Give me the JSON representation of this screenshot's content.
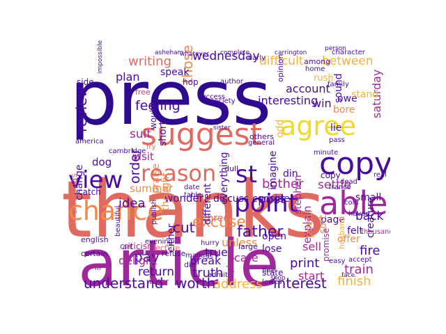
{
  "palette": {
    "dark_purple": "#2e0a8f",
    "indigo": "#4a0aa0",
    "magenta": "#a0289a",
    "pink": "#c8407f",
    "coral": "#e06a60",
    "orange": "#f0894c",
    "amber": "#f4b23a",
    "yellow": "#f2d82a"
  },
  "words": [
    {
      "text": "press",
      "color": "dark_purple"
    },
    {
      "text": "thanks",
      "color": "coral"
    },
    {
      "text": "article",
      "color": "magenta"
    },
    {
      "text": "suggest",
      "color": "coral"
    },
    {
      "text": "agree",
      "color": "yellow"
    },
    {
      "text": "copy",
      "color": "indigo"
    },
    {
      "text": "view",
      "color": "indigo"
    },
    {
      "text": "reason",
      "color": "coral"
    },
    {
      "text": "st",
      "color": "indigo"
    },
    {
      "text": "chance",
      "color": "orange"
    },
    {
      "text": "point",
      "color": "indigo"
    },
    {
      "text": "able",
      "color": "magenta"
    },
    {
      "text": "review",
      "color": "indigo"
    },
    {
      "text": "writing",
      "color": "coral"
    },
    {
      "text": "wednesday",
      "color": "indigo"
    },
    {
      "text": "difficult",
      "color": "amber"
    },
    {
      "text": "between",
      "color": "amber"
    },
    {
      "text": "saturday",
      "color": "magenta"
    },
    {
      "text": "feeling",
      "color": "indigo"
    },
    {
      "text": "suit",
      "color": "magenta"
    },
    {
      "text": "those",
      "color": "orange"
    },
    {
      "text": "excuse",
      "color": "orange"
    },
    {
      "text": "cut",
      "color": "indigo"
    },
    {
      "text": "father",
      "color": "indigo"
    },
    {
      "text": "understand",
      "color": "indigo"
    },
    {
      "text": "worth",
      "color": "indigo"
    },
    {
      "text": "address",
      "color": "amber"
    },
    {
      "text": "interest",
      "color": "indigo"
    },
    {
      "text": "finish",
      "color": "amber"
    },
    {
      "text": "train",
      "color": "magenta"
    },
    {
      "text": "settle",
      "color": "magenta"
    },
    {
      "text": "copy",
      "color": "indigo"
    },
    {
      "text": "pay",
      "color": "indigo"
    },
    {
      "text": "return",
      "color": "indigo"
    },
    {
      "text": "order",
      "color": "indigo"
    },
    {
      "text": "idea",
      "color": "indigo"
    },
    {
      "text": "post",
      "color": "indigo"
    },
    {
      "text": "bother",
      "color": "magenta"
    },
    {
      "text": "account",
      "color": "indigo"
    },
    {
      "text": "interesting",
      "color": "indigo"
    },
    {
      "text": "print",
      "color": "indigo"
    },
    {
      "text": "sell",
      "color": "magenta"
    },
    {
      "text": "fire",
      "color": "indigo"
    },
    {
      "text": "back",
      "color": "indigo"
    },
    {
      "text": "explain",
      "color": "magenta"
    },
    {
      "text": "truth",
      "color": "indigo"
    },
    {
      "text": "break",
      "color": "indigo"
    },
    {
      "text": "care",
      "color": "magenta"
    },
    {
      "text": "start",
      "color": "magenta"
    },
    {
      "text": "true",
      "color": "indigo"
    },
    {
      "text": "unless",
      "color": "orange"
    },
    {
      "text": "delight",
      "color": "magenta"
    },
    {
      "text": "plan",
      "color": "indigo"
    },
    {
      "text": "change",
      "color": "indigo"
    },
    {
      "text": "visit",
      "color": "magenta"
    },
    {
      "text": "dog",
      "color": "indigo"
    },
    {
      "text": "summer",
      "color": "orange"
    },
    {
      "text": "wonder",
      "color": "indigo"
    },
    {
      "text": "discuss",
      "color": "indigo"
    },
    {
      "text": "consider",
      "color": "indigo"
    },
    {
      "text": "three",
      "color": "coral"
    },
    {
      "text": "imagine",
      "color": "indigo"
    },
    {
      "text": "page",
      "color": "indigo"
    },
    {
      "text": "felt",
      "color": "indigo"
    },
    {
      "text": "small",
      "color": "indigo"
    },
    {
      "text": "win",
      "color": "indigo"
    },
    {
      "text": "sound",
      "color": "indigo"
    },
    {
      "text": "bore",
      "color": "orange"
    },
    {
      "text": "owe",
      "color": "indigo"
    },
    {
      "text": "stand",
      "color": "amber"
    },
    {
      "text": "speak",
      "color": "indigo"
    },
    {
      "text": "side",
      "color": "indigo"
    },
    {
      "text": "short",
      "color": "indigo"
    },
    {
      "text": "praise",
      "color": "orange"
    },
    {
      "text": "thought",
      "color": "orange"
    },
    {
      "text": "everything",
      "color": "indigo"
    },
    {
      "text": "different",
      "color": "indigo"
    },
    {
      "text": "poem",
      "color": "orange"
    },
    {
      "text": "sort",
      "color": "orange"
    },
    {
      "text": "creature",
      "color": "indigo"
    },
    {
      "text": "offer",
      "color": "orange"
    },
    {
      "text": "either",
      "color": "indigo"
    },
    {
      "text": "lose",
      "color": "indigo"
    },
    {
      "text": "open",
      "color": "indigo"
    },
    {
      "text": "odd",
      "color": "amber"
    },
    {
      "text": "lie",
      "color": "indigo"
    },
    {
      "text": "din",
      "color": "indigo"
    },
    {
      "text": "catch",
      "color": "indigo"
    },
    {
      "text": "christmas",
      "color": "coral"
    },
    {
      "text": "english",
      "color": "indigo"
    },
    {
      "text": "criticism",
      "color": "magenta"
    },
    {
      "text": "lecture",
      "color": "coral"
    },
    {
      "text": "writer",
      "color": "magenta"
    },
    {
      "text": "stephen",
      "color": "magenta"
    },
    {
      "text": "promise",
      "color": "magenta"
    },
    {
      "text": "husband",
      "color": "amber"
    },
    {
      "text": "state",
      "color": "indigo"
    },
    {
      "text": "play",
      "color": "magenta"
    },
    {
      "text": "large",
      "color": "indigo"
    },
    {
      "text": "rush",
      "color": "amber"
    },
    {
      "text": "wouldn",
      "color": "indigo"
    },
    {
      "text": "hop",
      "color": "indigo"
    },
    {
      "text": "free",
      "color": "pink"
    },
    {
      "text": "among",
      "color": "indigo"
    },
    {
      "text": "refuse",
      "color": "indigo"
    },
    {
      "text": "ill",
      "color": "magenta"
    },
    {
      "text": "fry",
      "color": "coral"
    },
    {
      "text": "manage",
      "color": "indigo"
    },
    {
      "text": "certain",
      "color": "indigo"
    },
    {
      "text": "die",
      "color": "indigo"
    },
    {
      "text": "dull",
      "color": "indigo"
    },
    {
      "text": "others",
      "color": "indigo"
    },
    {
      "text": "opinion",
      "color": "indigo"
    },
    {
      "text": "author",
      "color": "indigo"
    },
    {
      "text": "early",
      "color": "indigo"
    },
    {
      "text": "france",
      "color": "indigo"
    },
    {
      "text": "dead",
      "color": "indigo"
    },
    {
      "text": "admit",
      "color": "indigo"
    },
    {
      "text": "real",
      "color": "indigo"
    },
    {
      "text": "america",
      "color": "indigo"
    },
    {
      "text": "cambridge",
      "color": "indigo"
    },
    {
      "text": "hurry",
      "color": "indigo"
    },
    {
      "text": "accept",
      "color": "indigo"
    },
    {
      "text": "thousand",
      "color": "magenta"
    },
    {
      "text": "society",
      "color": "indigo"
    },
    {
      "text": "home",
      "color": "indigo"
    },
    {
      "text": "family",
      "color": "indigo"
    },
    {
      "text": "beautiful",
      "color": "indigo"
    },
    {
      "text": "publish",
      "color": "indigo"
    },
    {
      "text": "art",
      "color": "indigo"
    },
    {
      "text": "evening",
      "color": "indigo"
    },
    {
      "text": "table",
      "color": "indigo"
    },
    {
      "text": "date",
      "color": "indigo"
    },
    {
      "text": "fine",
      "color": "indigo"
    },
    {
      "text": "lewes",
      "color": "indigo"
    },
    {
      "text": "easy",
      "color": "indigo"
    },
    {
      "text": "haven",
      "color": "indigo"
    },
    {
      "text": "cold",
      "color": "indigo"
    },
    {
      "text": "pass",
      "color": "indigo"
    },
    {
      "text": "minute",
      "color": "indigo"
    },
    {
      "text": "general",
      "color": "indigo"
    },
    {
      "text": "success",
      "color": "indigo"
    },
    {
      "text": "character",
      "color": "indigo"
    },
    {
      "text": "impossible",
      "color": "indigo"
    },
    {
      "text": "asheham",
      "color": "indigo"
    },
    {
      "text": "whatever",
      "color": "indigo"
    },
    {
      "text": "complete",
      "color": "indigo"
    },
    {
      "text": "carrington",
      "color": "indigo"
    },
    {
      "text": "person",
      "color": "indigo"
    },
    {
      "text": "sister",
      "color": "indigo"
    },
    {
      "text": "shop",
      "color": "indigo"
    },
    {
      "text": "face",
      "color": "indigo"
    }
  ]
}
